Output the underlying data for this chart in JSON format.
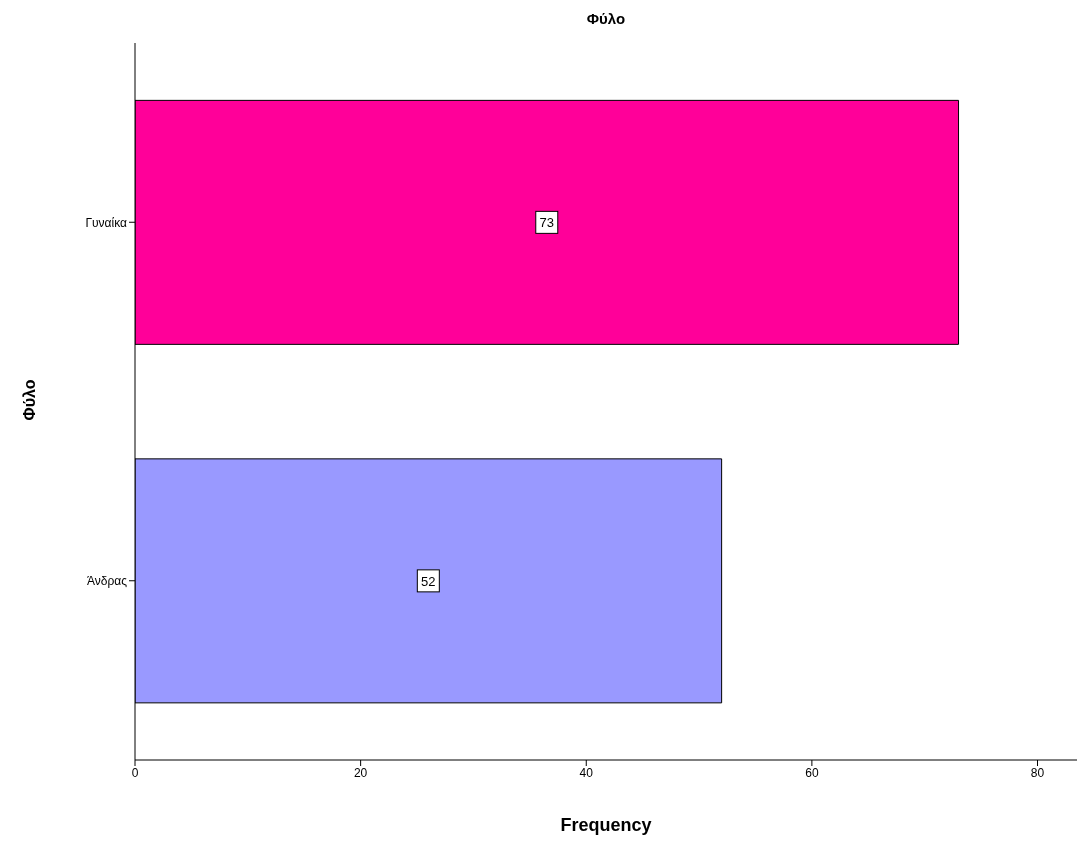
{
  "chart_data": {
    "type": "bar",
    "orientation": "horizontal",
    "title": "Φύλο",
    "ylabel": "Φύλο",
    "xlabel": "Frequency",
    "categories": [
      "Γυναίκα",
      "Άνδρας"
    ],
    "values": [
      73,
      52
    ],
    "colors": [
      "#ff0099",
      "#9999ff"
    ],
    "xlim": [
      0,
      83.5
    ],
    "xticks": [
      0,
      20,
      40,
      60,
      80
    ],
    "data_labels": true,
    "grid": false,
    "legend": false
  }
}
